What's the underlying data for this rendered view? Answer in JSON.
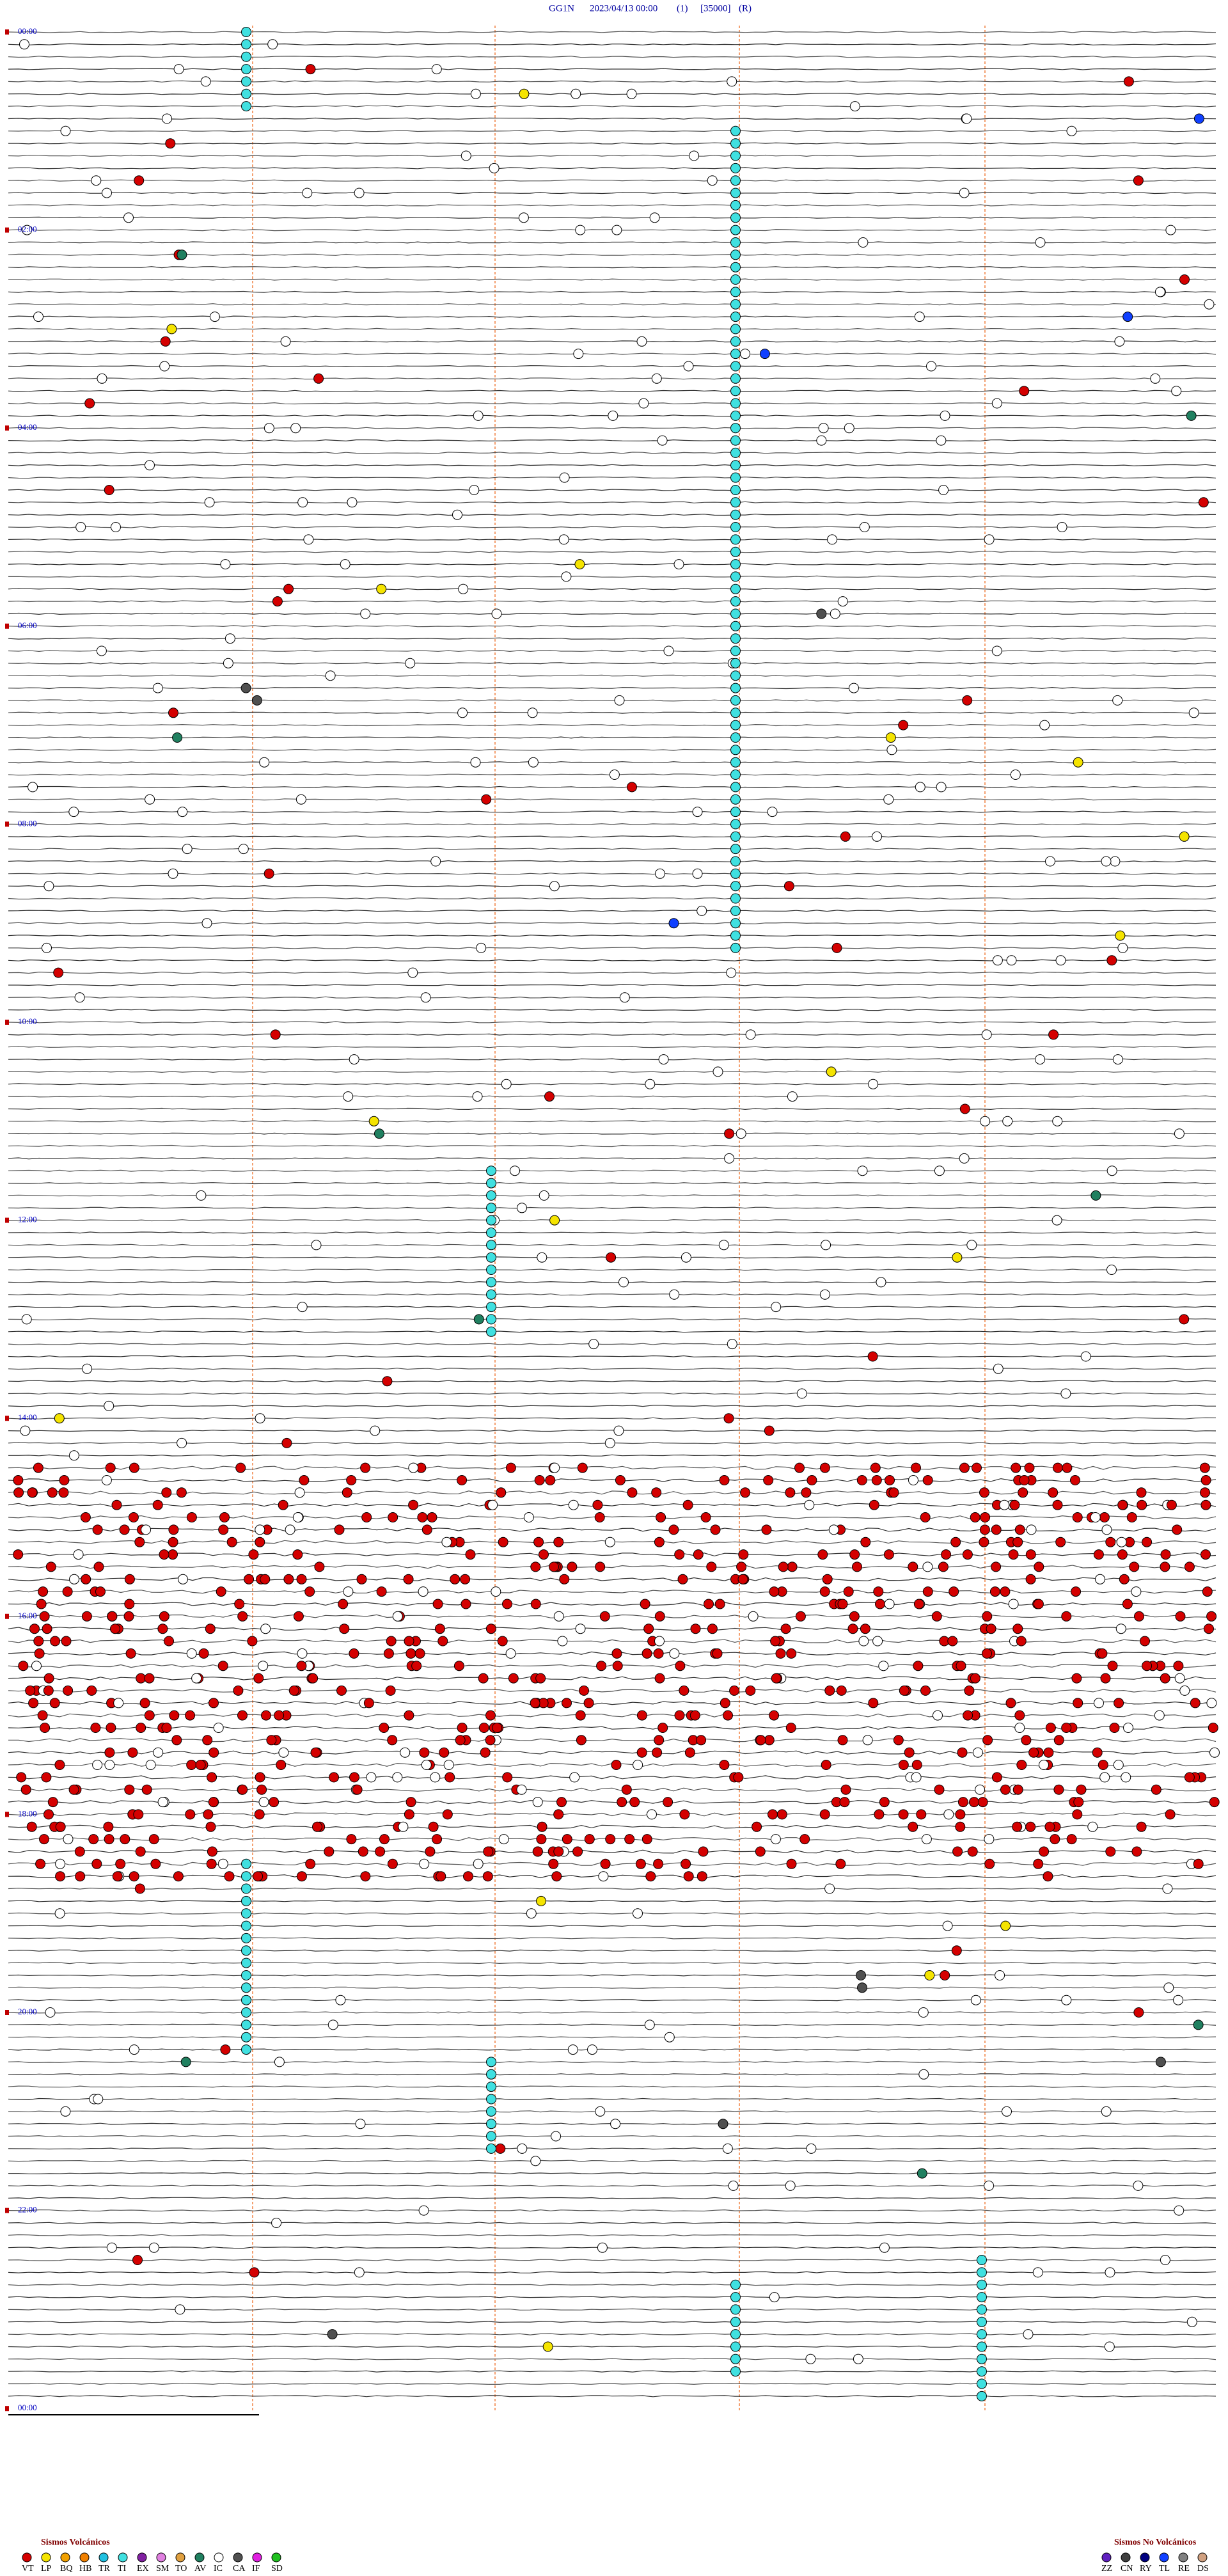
{
  "header": {
    "station": "GG1N",
    "datetime": "2023/04/13 00:00",
    "channel": "(1)",
    "scale": "[35000]",
    "mode": "(R)"
  },
  "hour_labels": [
    "00:00",
    "02:00",
    "04:00",
    "06:00",
    "08:00",
    "10:00",
    "12:00",
    "14:00",
    "16:00",
    "18:00",
    "20:00",
    "22:00",
    "00:00"
  ],
  "legend_volcanic": {
    "title": "Sismos Volcánicos",
    "items": [
      {
        "code": "VT",
        "color": "#d40000"
      },
      {
        "code": "LP",
        "color": "#f5e400"
      },
      {
        "code": "BQ",
        "color": "#f0a000"
      },
      {
        "code": "HB",
        "color": "#f08000"
      },
      {
        "code": "TR",
        "color": "#20c0e0"
      },
      {
        "code": "TI",
        "color": "#40e0e0"
      },
      {
        "code": "EX",
        "color": "#8020a0"
      },
      {
        "code": "SM",
        "color": "#e080e0"
      },
      {
        "code": "TO",
        "color": "#e0a040"
      },
      {
        "code": "AV",
        "color": "#208060"
      },
      {
        "code": "IC",
        "color": "#ffffff"
      },
      {
        "code": "CA",
        "color": "#505050"
      },
      {
        "code": "IF",
        "color": "#e020e0"
      },
      {
        "code": "SD",
        "color": "#20c020"
      }
    ]
  },
  "legend_nonvolcanic": {
    "title": "Sismos No Volcánicos",
    "items": [
      {
        "code": "ZZ",
        "color": "#6020c0"
      },
      {
        "code": "CN",
        "color": "#404040"
      },
      {
        "code": "RY",
        "color": "#000080"
      },
      {
        "code": "TL",
        "color": "#1040ff"
      },
      {
        "code": "RE",
        "color": "#808080"
      },
      {
        "code": "DS",
        "color": "#d0a080"
      }
    ]
  }
}
